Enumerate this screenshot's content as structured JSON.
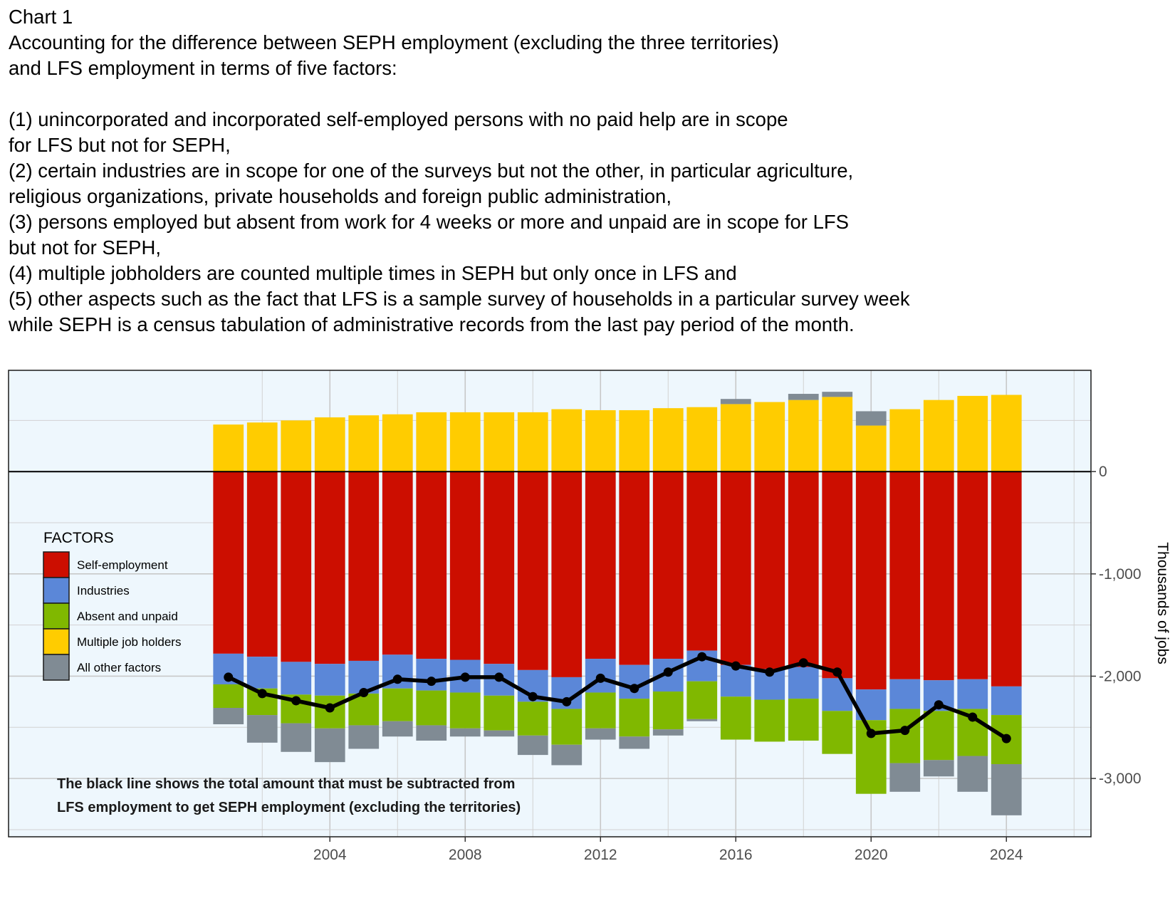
{
  "title_lines": [
    "Chart 1",
    "Accounting for the difference between SEPH employment (excluding the three territories)",
    "and LFS employment in terms of five factors:",
    "",
    "(1) unincorporated and incorporated self-employed persons with no paid help are in scope",
    "for LFS but not for SEPH,",
    "(2) certain industries are in scope for one of the surveys but not the other, in particular agriculture,",
    "religious organizations, private households and foreign public administration,",
    "(3) persons employed but absent from work for 4 weeks or more and unpaid are in scope for LFS",
    "but not for SEPH,",
    "(4) multiple jobholders are counted multiple times in SEPH but only once in LFS and",
    "(5) other aspects such as the fact that LFS is a sample survey of households in a particular survey week",
    "while SEPH is a census tabulation of administrative records from the last pay period of the month."
  ],
  "chart_data": {
    "type": "bar",
    "stacked": true,
    "x": [
      2001,
      2002,
      2003,
      2004,
      2005,
      2006,
      2007,
      2008,
      2009,
      2010,
      2011,
      2012,
      2013,
      2014,
      2015,
      2016,
      2017,
      2018,
      2019,
      2020,
      2021,
      2022,
      2023,
      2024
    ],
    "x_ticks": [
      2004,
      2008,
      2012,
      2016,
      2020,
      2024
    ],
    "y_ticks": [
      0,
      -1000,
      -2000,
      -3000
    ],
    "y_tick_labels": [
      "0",
      "-1,000",
      "-2,000",
      "-3,000"
    ],
    "xlim": [
      1994.5,
      2026.5
    ],
    "ylim": [
      -3570,
      990
    ],
    "ylabel": "Thousands of jobs",
    "y_axis_side": "right",
    "legend_title": "FACTORS",
    "legend_position": "left",
    "series": [
      {
        "key": "self",
        "name": "Self-employment",
        "color": "#cc0e00",
        "values": [
          -1780,
          -1810,
          -1860,
          -1880,
          -1850,
          -1790,
          -1830,
          -1840,
          -1880,
          -1940,
          -2010,
          -1830,
          -1890,
          -1830,
          -1750,
          -1890,
          -1930,
          -1910,
          -2020,
          -2130,
          -2030,
          -2040,
          -2030,
          -2100
        ]
      },
      {
        "key": "industries",
        "name": "Industries",
        "color": "#5b87d8",
        "values": [
          -300,
          -310,
          -320,
          -310,
          -320,
          -330,
          -310,
          -320,
          -310,
          -310,
          -310,
          -330,
          -330,
          -320,
          -300,
          -310,
          -300,
          -310,
          -320,
          -300,
          -290,
          -300,
          -290,
          -280
        ]
      },
      {
        "key": "absent",
        "name": "Absent and unpaid",
        "color": "#80b800",
        "values": [
          -230,
          -260,
          -280,
          -320,
          -310,
          -320,
          -340,
          -350,
          -340,
          -330,
          -350,
          -350,
          -370,
          -370,
          -370,
          -420,
          -410,
          -410,
          -420,
          -720,
          -530,
          -480,
          -460,
          -480
        ]
      },
      {
        "key": "multiple",
        "name": "Multiple job holders",
        "color": "#ffcc00",
        "values": [
          460,
          480,
          500,
          530,
          550,
          560,
          580,
          580,
          580,
          580,
          610,
          600,
          600,
          620,
          630,
          660,
          680,
          700,
          730,
          450,
          610,
          700,
          740,
          750
        ]
      },
      {
        "key": "other",
        "name": "All other factors",
        "color": "#808b94",
        "values": [
          -160,
          -270,
          -280,
          -330,
          -230,
          -150,
          -150,
          -80,
          -60,
          -190,
          -200,
          -110,
          -120,
          -60,
          -20,
          50,
          0,
          60,
          50,
          140,
          -280,
          -160,
          -350,
          -500
        ]
      }
    ],
    "total_line": {
      "color": "#000000",
      "values": [
        -2010,
        -2170,
        -2240,
        -2310,
        -2160,
        -2030,
        -2050,
        -2010,
        -2010,
        -2200,
        -2250,
        -2020,
        -2120,
        -1960,
        -1810,
        -1900,
        -1960,
        -1870,
        -1960,
        -2560,
        -2530,
        -2280,
        -2400,
        -2610
      ]
    },
    "annotation_lines": [
      "The black line shows the total amount that must be subtracted from",
      "LFS employment to get SEPH employment (excluding the territories)"
    ],
    "panel_background": "#eef7fd",
    "grid": true
  }
}
